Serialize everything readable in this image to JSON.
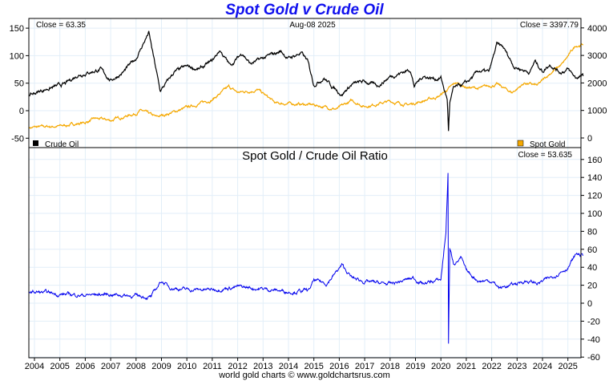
{
  "chart_data": [
    {
      "type": "line",
      "title": "Spot Gold v Crude Oil",
      "date_label": "Aug-08  2025",
      "left_axis": {
        "ticks": [
          150,
          100,
          50,
          0,
          -50
        ],
        "range": [
          -65,
          165
        ]
      },
      "right_axis": {
        "ticks": [
          4000,
          3000,
          2000,
          1000,
          0
        ],
        "range": [
          -200,
          4200
        ]
      },
      "series": [
        {
          "name": "Crude Oil",
          "axis": "left",
          "color": "#000000",
          "close_label": "Close = 63.35",
          "points": [
            [
              2003.8,
              28
            ],
            [
              2004.5,
              40
            ],
            [
              2005.2,
              48
            ],
            [
              2005.7,
              65
            ],
            [
              2006.6,
              75
            ],
            [
              2007.0,
              55
            ],
            [
              2007.5,
              70
            ],
            [
              2008.0,
              95
            ],
            [
              2008.5,
              142
            ],
            [
              2008.95,
              35
            ],
            [
              2009.5,
              70
            ],
            [
              2010.0,
              80
            ],
            [
              2010.5,
              75
            ],
            [
              2011.0,
              90
            ],
            [
              2011.3,
              110
            ],
            [
              2011.7,
              82
            ],
            [
              2012.2,
              105
            ],
            [
              2012.5,
              85
            ],
            [
              2013.0,
              95
            ],
            [
              2013.7,
              108
            ],
            [
              2014.0,
              95
            ],
            [
              2014.5,
              105
            ],
            [
              2014.75,
              90
            ],
            [
              2015.0,
              48
            ],
            [
              2015.4,
              60
            ],
            [
              2015.7,
              45
            ],
            [
              2016.1,
              30
            ],
            [
              2016.5,
              48
            ],
            [
              2017.0,
              53
            ],
            [
              2017.5,
              45
            ],
            [
              2018.0,
              62
            ],
            [
              2018.8,
              75
            ],
            [
              2018.95,
              45
            ],
            [
              2019.3,
              63
            ],
            [
              2019.8,
              58
            ],
            [
              2020.0,
              60
            ],
            [
              2020.25,
              20
            ],
            [
              2020.3,
              -37
            ],
            [
              2020.35,
              15
            ],
            [
              2020.5,
              40
            ],
            [
              2021.0,
              50
            ],
            [
              2021.5,
              72
            ],
            [
              2021.9,
              70
            ],
            [
              2022.2,
              120
            ],
            [
              2022.45,
              115
            ],
            [
              2022.9,
              80
            ],
            [
              2023.5,
              70
            ],
            [
              2023.7,
              90
            ],
            [
              2024.0,
              72
            ],
            [
              2024.3,
              85
            ],
            [
              2024.7,
              70
            ],
            [
              2025.0,
              75
            ],
            [
              2025.3,
              60
            ],
            [
              2025.6,
              63
            ]
          ]
        },
        {
          "name": "Spot Gold",
          "axis": "right",
          "color": "#f5a800",
          "close_label": "Close = 3397.79",
          "points": [
            [
              2003.8,
              380
            ],
            [
              2005.0,
              430
            ],
            [
              2006.0,
              560
            ],
            [
              2006.4,
              700
            ],
            [
              2007.0,
              640
            ],
            [
              2008.0,
              900
            ],
            [
              2008.2,
              1000
            ],
            [
              2008.8,
              750
            ],
            [
              2009.5,
              950
            ],
            [
              2010.0,
              1100
            ],
            [
              2011.0,
              1400
            ],
            [
              2011.65,
              1850
            ],
            [
              2012.0,
              1650
            ],
            [
              2012.8,
              1750
            ],
            [
              2013.3,
              1400
            ],
            [
              2013.5,
              1250
            ],
            [
              2014.0,
              1250
            ],
            [
              2015.0,
              1200
            ],
            [
              2015.9,
              1050
            ],
            [
              2016.5,
              1350
            ],
            [
              2017.0,
              1150
            ],
            [
              2018.0,
              1330
            ],
            [
              2018.7,
              1200
            ],
            [
              2019.5,
              1400
            ],
            [
              2019.9,
              1500
            ],
            [
              2020.6,
              2000
            ],
            [
              2021.0,
              1850
            ],
            [
              2021.5,
              1800
            ],
            [
              2022.2,
              1950
            ],
            [
              2022.8,
              1650
            ],
            [
              2023.3,
              2000
            ],
            [
              2023.8,
              1900
            ],
            [
              2024.3,
              2350
            ],
            [
              2024.8,
              2700
            ],
            [
              2025.3,
              3350
            ],
            [
              2025.6,
              3400
            ]
          ]
        }
      ]
    },
    {
      "type": "line",
      "title": "Spot Gold  /  Crude Oil Ratio",
      "close_label": "Close = 53.635",
      "color": "#0000ee",
      "right_axis": {
        "ticks": [
          160,
          140,
          120,
          100,
          80,
          60,
          40,
          20,
          0,
          -20,
          -40,
          -60
        ],
        "range": [
          -60,
          160
        ]
      },
      "points": [
        [
          2003.8,
          13
        ],
        [
          2005,
          10
        ],
        [
          2006,
          9
        ],
        [
          2007,
          10
        ],
        [
          2008,
          8
        ],
        [
          2008.6,
          7
        ],
        [
          2009.0,
          25
        ],
        [
          2009.3,
          18
        ],
        [
          2010,
          15
        ],
        [
          2011,
          15
        ],
        [
          2011.5,
          17
        ],
        [
          2012,
          18
        ],
        [
          2013,
          16
        ],
        [
          2014,
          13
        ],
        [
          2014.8,
          14
        ],
        [
          2015.0,
          25
        ],
        [
          2015.5,
          22
        ],
        [
          2016.1,
          42
        ],
        [
          2016.5,
          28
        ],
        [
          2017,
          24
        ],
        [
          2018,
          21
        ],
        [
          2018.9,
          28
        ],
        [
          2019.3,
          22
        ],
        [
          2020.0,
          26
        ],
        [
          2020.2,
          80
        ],
        [
          2020.28,
          145
        ],
        [
          2020.3,
          -45
        ],
        [
          2020.35,
          60
        ],
        [
          2020.5,
          45
        ],
        [
          2020.8,
          50
        ],
        [
          2021.0,
          35
        ],
        [
          2021.5,
          25
        ],
        [
          2022.0,
          25
        ],
        [
          2022.3,
          17
        ],
        [
          2022.8,
          20
        ],
        [
          2023.3,
          25
        ],
        [
          2023.8,
          22
        ],
        [
          2024.3,
          28
        ],
        [
          2024.7,
          35
        ],
        [
          2025.0,
          40
        ],
        [
          2025.35,
          55
        ],
        [
          2025.6,
          53
        ]
      ]
    }
  ],
  "x_axis": {
    "ticks": [
      "2004",
      "2005",
      "2006",
      "2007",
      "2008",
      "2009",
      "2010",
      "2011",
      "2012",
      "2013",
      "2014",
      "2015",
      "2016",
      "2017",
      "2018",
      "2019",
      "2020",
      "2021",
      "2022",
      "2023",
      "2024",
      "2025"
    ],
    "range": [
      2003.78,
      2025.6
    ]
  },
  "footer": "world gold charts © www.goldchartsrus.com"
}
